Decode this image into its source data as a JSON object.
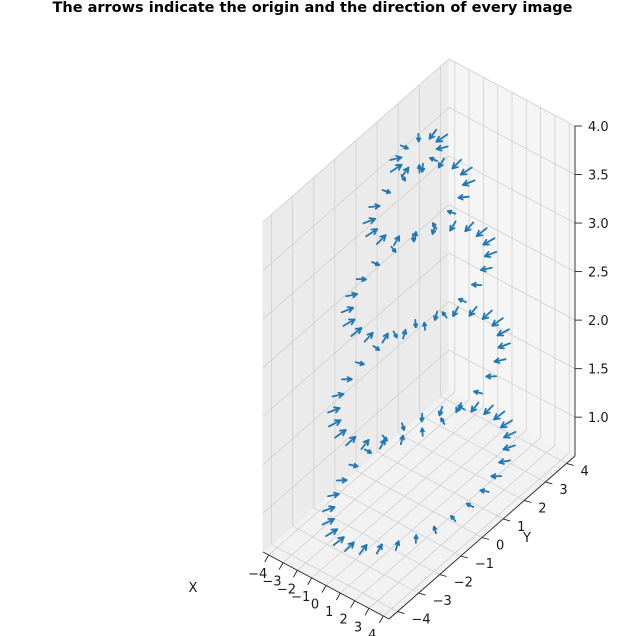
{
  "chart_data": {
    "type": "quiver3d",
    "title": "The arrows indicate the origin and the direction of every image",
    "xlabel": "X",
    "ylabel": "Y",
    "zlabel": "",
    "xlim": [
      -4.4,
      4.4
    ],
    "ylim": [
      -4.4,
      4.4
    ],
    "zlim": [
      0.6,
      4.0
    ],
    "xticks": [
      "−4",
      "−3",
      "−2",
      "−1",
      "0",
      "1",
      "2",
      "3",
      "4"
    ],
    "yticks": [
      "−4",
      "−3",
      "−2",
      "−1",
      "0",
      "1",
      "2",
      "3",
      "4"
    ],
    "zticks": [
      "1.0",
      "1.5",
      "2.0",
      "2.5",
      "3.0",
      "3.5",
      "4.0"
    ],
    "grid": true,
    "color": "#1f77b4",
    "arrows": {
      "layout": "hemisphere rings of camera origins, each arrow pointing toward the central axis",
      "radius": 3.8,
      "center_z": 0.6,
      "arrow_length": 0.45,
      "rings": [
        {
          "elevation_deg": 4,
          "count": 30
        },
        {
          "elevation_deg": 20,
          "count": 26
        },
        {
          "elevation_deg": 37,
          "count": 22
        },
        {
          "elevation_deg": 55,
          "count": 16
        },
        {
          "elevation_deg": 72,
          "count": 10
        }
      ]
    }
  }
}
